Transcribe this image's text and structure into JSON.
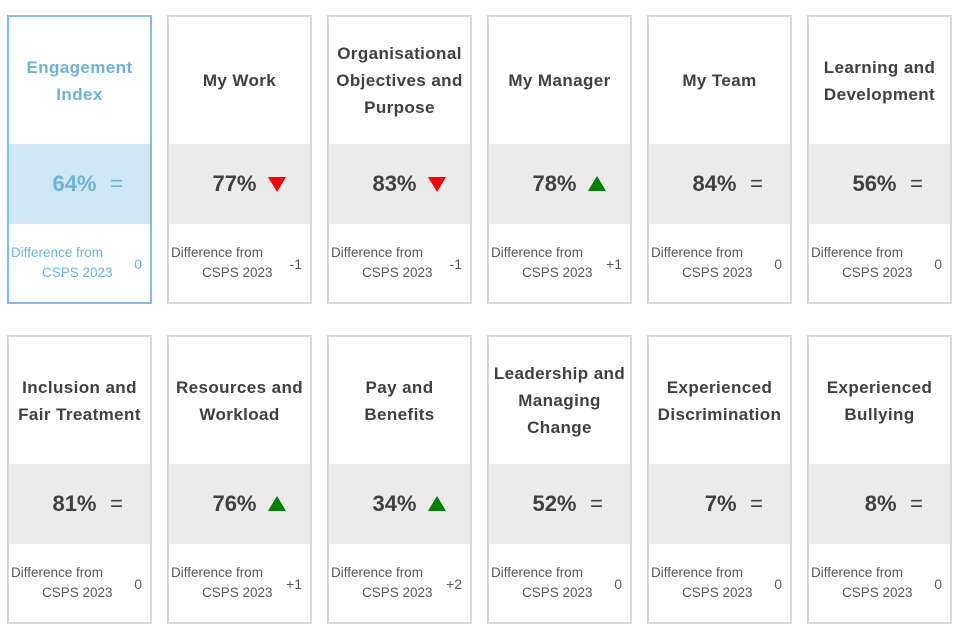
{
  "diff_label_line1": "Difference from",
  "diff_label_line2": "CSPS 2023",
  "colors": {
    "up": "#008000",
    "down": "#ff0000",
    "highlight": "#6ab4dc",
    "band_grey": "#ebebeb",
    "band_blue": "#cfe6f5",
    "text": "#404040"
  },
  "cards": [
    {
      "title": "Engagement Index",
      "value": "64%",
      "trend": "equal",
      "trend_icon": "equals-icon",
      "trend_symbol": "=",
      "difference": "0"
    },
    {
      "title": "My Work",
      "value": "77%",
      "trend": "down",
      "trend_icon": "triangle-down-icon",
      "trend_symbol": "",
      "difference": "-1"
    },
    {
      "title": "Organisational Objectives and Purpose",
      "value": "83%",
      "trend": "down",
      "trend_icon": "triangle-down-icon",
      "trend_symbol": "",
      "difference": "-1"
    },
    {
      "title": "My Manager",
      "value": "78%",
      "trend": "up",
      "trend_icon": "triangle-up-icon",
      "trend_symbol": "",
      "difference": "+1"
    },
    {
      "title": "My Team",
      "value": "84%",
      "trend": "equal",
      "trend_icon": "equals-icon",
      "trend_symbol": "=",
      "difference": "0"
    },
    {
      "title": "Learning and Development",
      "value": "56%",
      "trend": "equal",
      "trend_icon": "equals-icon",
      "trend_symbol": "=",
      "difference": "0"
    },
    {
      "title": "Inclusion and Fair Treatment",
      "value": "81%",
      "trend": "equal",
      "trend_icon": "equals-icon",
      "trend_symbol": "=",
      "difference": "0"
    },
    {
      "title": "Resources and Workload",
      "value": "76%",
      "trend": "up",
      "trend_icon": "triangle-up-icon",
      "trend_symbol": "",
      "difference": "+1"
    },
    {
      "title": "Pay and Benefits",
      "value": "34%",
      "trend": "up",
      "trend_icon": "triangle-up-icon",
      "trend_symbol": "",
      "difference": "+2"
    },
    {
      "title": "Leadership and Managing Change",
      "value": "52%",
      "trend": "equal",
      "trend_icon": "equals-icon",
      "trend_symbol": "=",
      "difference": "0"
    },
    {
      "title": "Experienced Discrimination",
      "value": "7%",
      "trend": "equal",
      "trend_icon": "equals-icon",
      "trend_symbol": "=",
      "difference": "0"
    },
    {
      "title": "Experienced Bullying",
      "value": "8%",
      "trend": "equal",
      "trend_icon": "equals-icon",
      "trend_symbol": "=",
      "difference": "0"
    }
  ]
}
